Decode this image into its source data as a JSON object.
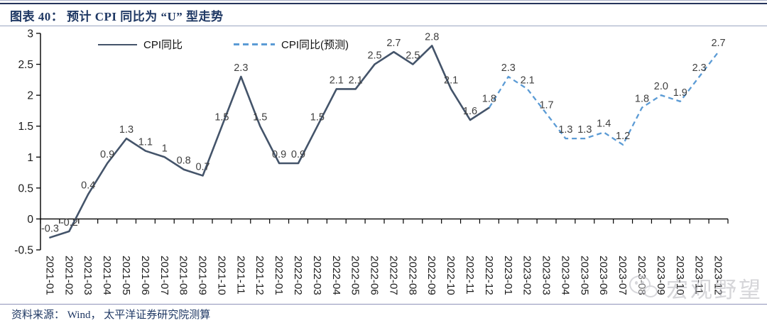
{
  "header": {
    "title": "图表 40： 预计 CPI 同比为 “U” 型走势"
  },
  "legend": {
    "items": [
      {
        "label": "CPI同比",
        "style": "solid",
        "color": "#44546A"
      },
      {
        "label": "CPI同比(预测)",
        "style": "dashed",
        "color": "#5B9BD5"
      }
    ]
  },
  "footer": {
    "source": "资料来源： Wind， 太平洋证券研究院测算"
  },
  "watermark": {
    "icon": "chat-bubble-icon",
    "text": "宏观野望"
  },
  "chart_data": {
    "type": "line",
    "title": "预计CPI同比为“U”型走势",
    "xlabel": "",
    "ylabel": "",
    "ylim": [
      -0.5,
      3
    ],
    "grid": false,
    "legend_position": "top",
    "y_ticks": [
      "3",
      "2.5",
      "2",
      "1.5",
      "1",
      "0.5",
      "0",
      "-0.5"
    ],
    "categories": [
      "2021-01",
      "2021-02",
      "2021-03",
      "2021-04",
      "2021-05",
      "2021-06",
      "2021-07",
      "2021-08",
      "2021-09",
      "2021-10",
      "2021-11",
      "2021-12",
      "2022-01",
      "2022-02",
      "2022-03",
      "2022-04",
      "2022-05",
      "2022-06",
      "2022-07",
      "2022-08",
      "2022-09",
      "2022-10",
      "2022-11",
      "2022-12",
      "2023-01",
      "2023-02",
      "2023-03",
      "2023-04",
      "2023-05",
      "2023-06",
      "2023-07",
      "2023-08",
      "2023-09",
      "2023-10",
      "2023-11",
      "2023-12"
    ],
    "series": [
      {
        "name": "CPI同比",
        "style": "solid",
        "color": "#44546A",
        "start_index": 0,
        "values": [
          -0.3,
          -0.2,
          0.4,
          0.9,
          1.3,
          1.1,
          1.0,
          0.8,
          0.7,
          1.5,
          2.3,
          1.5,
          0.9,
          0.9,
          1.5,
          2.1,
          2.1,
          2.5,
          2.7,
          2.5,
          2.8,
          2.1,
          1.6,
          1.8
        ]
      },
      {
        "name": "CPI同比(预测)",
        "style": "dashed",
        "color": "#5B9BD5",
        "start_index": 23,
        "values": [
          1.8,
          2.3,
          2.1,
          1.7,
          1.3,
          1.3,
          1.4,
          1.2,
          1.8,
          2.0,
          1.9,
          2.3,
          2.7
        ]
      }
    ],
    "point_labels": [
      "-0.3",
      "-0.2",
      "0.4",
      "0.9",
      "1.3",
      "1.1",
      "1",
      "0.8",
      "0.7",
      "1.5",
      "2.3",
      "1.5",
      "0.9",
      "0.9",
      "1.5",
      "2.1",
      "2.1",
      "2.5",
      "2.7",
      "2.5",
      "2.8",
      "2.1",
      "1.6",
      "1.8",
      "2.3",
      "2.1",
      "1.7",
      "1.3",
      "1.3",
      "1.4",
      "1.2",
      "1.8",
      "2.0",
      "1.9",
      "2.3",
      "2.7"
    ]
  }
}
